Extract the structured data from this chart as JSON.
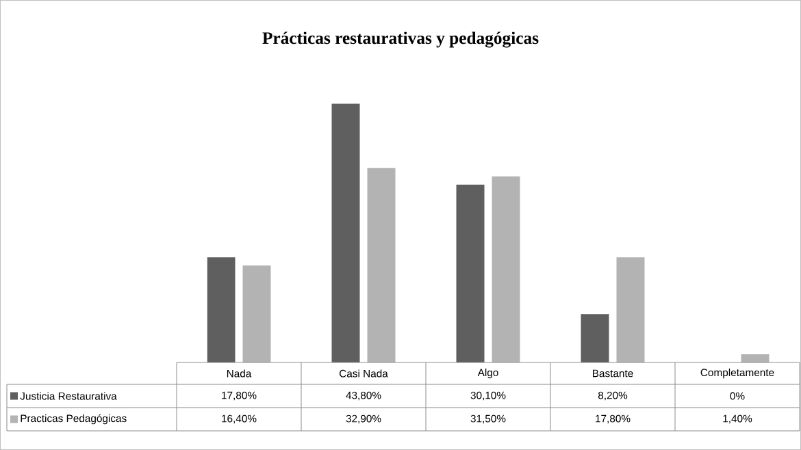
{
  "chart_data": {
    "type": "bar",
    "title": "Prácticas restaurativas y pedagógicas",
    "legend": "bottom left",
    "categories": [
      "Nada",
      "Casi Nada",
      "Algo",
      "Bastante",
      "Completamente"
    ],
    "series": [
      {
        "name": "Justicia Restaurativa",
        "color": "#5f5f5f",
        "values": [
          17.8,
          43.8,
          30.1,
          8.2,
          0
        ],
        "value_labels": [
          "17,80%",
          "43,80%",
          "30,10%",
          "8,20%",
          "0%"
        ]
      },
      {
        "name": "Practicas Pedagógicas",
        "color": "#b3b3b3",
        "values": [
          16.4,
          32.9,
          31.5,
          17.8,
          1.4
        ],
        "value_labels": [
          "16,40%",
          "32,90%",
          "31,50%",
          "17,80%",
          "1,40%"
        ]
      }
    ]
  }
}
